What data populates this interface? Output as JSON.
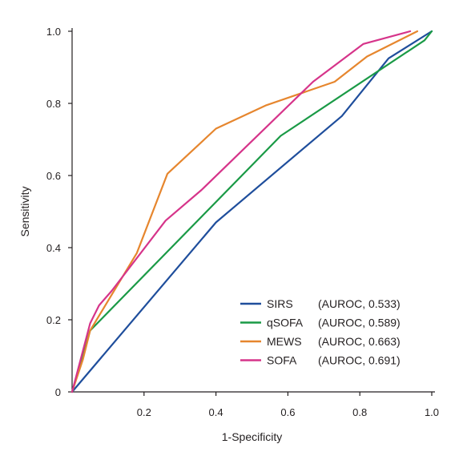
{
  "chart_data": {
    "type": "line",
    "title": "",
    "xlabel": "1-Specificity",
    "ylabel": "Sensitivity",
    "xlim": [
      0,
      1
    ],
    "ylim": [
      0,
      1
    ],
    "x_ticks": [
      0.2,
      0.4,
      0.6,
      0.8,
      1.0
    ],
    "x_tick_labels": [
      "0.2",
      "0.4",
      "0.6",
      "0.8",
      "1.0"
    ],
    "y_ticks": [
      0,
      0.2,
      0.4,
      0.6,
      0.8,
      1.0
    ],
    "y_tick_labels": [
      "0",
      "0.2",
      "0.4",
      "0.6",
      "0.8",
      "1.0"
    ],
    "grid": false,
    "legend_position": "bottom-right",
    "series": [
      {
        "name": "SIRS",
        "auroc_label": "(AUROC, 0.533)",
        "color": "#1f4e9c",
        "points": [
          [
            0,
            0
          ],
          [
            0.4,
            0.47
          ],
          [
            0.75,
            0.765
          ],
          [
            0.88,
            0.925
          ],
          [
            1.0,
            1.0
          ]
        ]
      },
      {
        "name": "qSOFA",
        "auroc_label": "(AUROC, 0.589)",
        "color": "#1a9a46",
        "points": [
          [
            0,
            0
          ],
          [
            0.05,
            0.17
          ],
          [
            0.58,
            0.71
          ],
          [
            0.98,
            0.975
          ],
          [
            1.0,
            1.0
          ]
        ]
      },
      {
        "name": "MEWS",
        "auroc_label": "(AUROC, 0.663)",
        "color": "#e6862e",
        "points": [
          [
            0,
            0
          ],
          [
            0.03,
            0.09
          ],
          [
            0.05,
            0.17
          ],
          [
            0.18,
            0.385
          ],
          [
            0.265,
            0.605
          ],
          [
            0.4,
            0.73
          ],
          [
            0.54,
            0.795
          ],
          [
            0.73,
            0.86
          ],
          [
            0.82,
            0.93
          ],
          [
            0.96,
            1.0
          ]
        ]
      },
      {
        "name": "SOFA",
        "auroc_label": "(AUROC, 0.691)",
        "color": "#d6348a",
        "points": [
          [
            0,
            0
          ],
          [
            0.05,
            0.19
          ],
          [
            0.075,
            0.24
          ],
          [
            0.11,
            0.28
          ],
          [
            0.26,
            0.475
          ],
          [
            0.36,
            0.56
          ],
          [
            0.67,
            0.86
          ],
          [
            0.81,
            0.965
          ],
          [
            0.94,
            1.0
          ]
        ]
      }
    ]
  }
}
